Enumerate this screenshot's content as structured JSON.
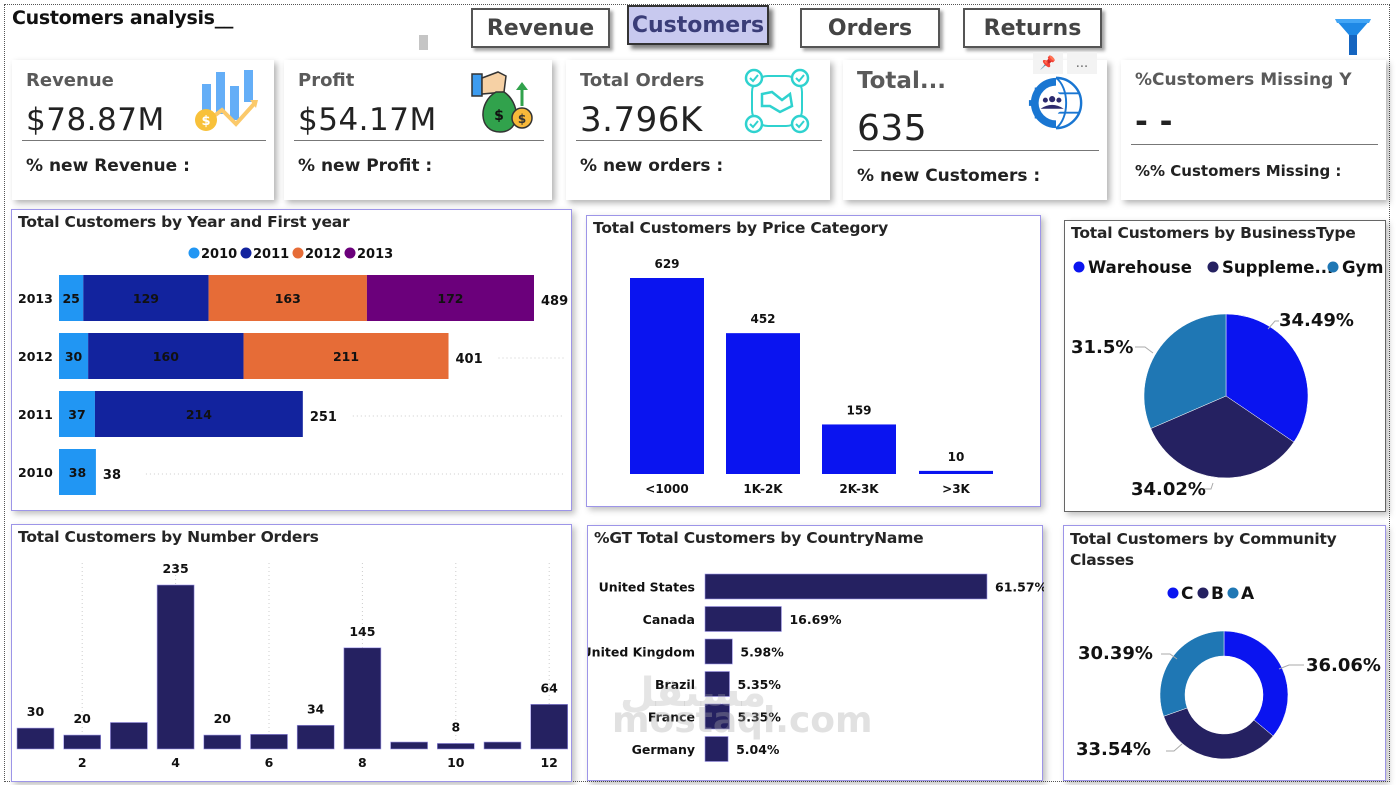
{
  "header": {
    "title": "Customers analysis__",
    "nav": [
      {
        "label": "Revenue",
        "active": false
      },
      {
        "label": "Customers",
        "active": true
      },
      {
        "label": "Orders",
        "active": false
      },
      {
        "label": "Returns",
        "active": false
      }
    ],
    "filter_icon": "filter-funnel-icon"
  },
  "kpis": [
    {
      "title": "Revenue",
      "value": "$78.87M",
      "sub": "% new Revenue :",
      "icon": "revenue-chart-coin-icon"
    },
    {
      "title": "Profit",
      "value": "$54.17M",
      "sub": "% new Profit :",
      "icon": "money-bag-icon"
    },
    {
      "title": "Total Orders",
      "value": "3.796K",
      "sub": "% new orders :",
      "icon": "handshake-check-icon"
    },
    {
      "title": "Total...",
      "value": "635",
      "sub": "% new Customers :",
      "icon": "global-customers-gear-icon"
    },
    {
      "title": "%Customers Missing Y",
      "value": "- -",
      "sub": "%% Customers Missing :",
      "icon": ""
    }
  ],
  "visual_tools": {
    "pin": "pin-icon",
    "more": "..."
  },
  "colors": {
    "c2010": "#2196f3",
    "c2011": "#12239e",
    "c2012": "#e66c37",
    "c2013": "#6b007b",
    "blue": "#0a14f0",
    "navy": "#252161",
    "steel": "#1f77b4",
    "filter": "#1e88e5"
  },
  "chart_data": [
    {
      "id": "year-first-year",
      "type": "bar",
      "orientation": "horizontal",
      "stacked": true,
      "title": "Total Customers by Year and First year",
      "categories": [
        "2013",
        "2012",
        "2011",
        "2010"
      ],
      "legend": [
        "2010",
        "2011",
        "2012",
        "2013"
      ],
      "legend_position": "top-center",
      "series": [
        {
          "name": "2010",
          "values": [
            25,
            30,
            37,
            38
          ]
        },
        {
          "name": "2011",
          "values": [
            129,
            160,
            214,
            null
          ]
        },
        {
          "name": "2012",
          "values": [
            163,
            211,
            null,
            null
          ]
        },
        {
          "name": "2013",
          "values": [
            172,
            null,
            null,
            null
          ]
        }
      ],
      "totals": [
        489,
        401,
        251,
        38
      ]
    },
    {
      "id": "price-category",
      "type": "bar",
      "title": "Total Customers by Price Category",
      "categories": [
        "<1000",
        "1K-2K",
        "2K-3K",
        ">3K"
      ],
      "values": [
        629,
        452,
        159,
        10
      ]
    },
    {
      "id": "business-type",
      "type": "pie",
      "title": "Total Customers by BusinessType",
      "legend": [
        "Warehouse",
        "Suppleme...",
        "Gym"
      ],
      "legend_position": "top-left",
      "labels": [
        "Warehouse",
        "Supplement",
        "Gym"
      ],
      "values": [
        34.49,
        34.02,
        31.5
      ],
      "value_labels": [
        "34.49%",
        "34.02%",
        "31.5%"
      ]
    },
    {
      "id": "number-orders",
      "type": "bar",
      "title": "Total Customers by Number Orders",
      "x": [
        1,
        2,
        3,
        4,
        5,
        6,
        7,
        8,
        9,
        10,
        11,
        12
      ],
      "values": [
        30,
        20,
        38,
        235,
        20,
        21,
        34,
        145,
        10,
        8,
        10,
        64
      ],
      "data_labels": [
        "30",
        "20",
        "",
        "235",
        "20",
        "",
        "34",
        "145",
        "",
        "8",
        "",
        "64"
      ],
      "x_ticks": [
        "2",
        "4",
        "6",
        "8",
        "10",
        "12"
      ],
      "grid": "vertical-dotted"
    },
    {
      "id": "country",
      "type": "bar",
      "orientation": "horizontal",
      "title": "%GT Total Customers by CountryName",
      "categories": [
        "United States",
        "Canada",
        "United Kingdom",
        "Brazil",
        "France",
        "Germany"
      ],
      "values": [
        61.57,
        16.69,
        5.98,
        5.35,
        5.35,
        5.04
      ],
      "value_labels": [
        "61.57%",
        "16.69%",
        "5.98%",
        "5.35%",
        "5.35%",
        "5.04%"
      ]
    },
    {
      "id": "community-classes",
      "type": "pie",
      "donut": true,
      "title": "Total Customers by Community Classes",
      "legend": [
        "C",
        "B",
        "A"
      ],
      "legend_position": "top-center",
      "values": [
        36.06,
        33.54,
        30.39
      ],
      "value_labels": [
        "36.06%",
        "33.54%",
        "30.39%"
      ]
    }
  ],
  "watermark": {
    "latin": "mostaql.com",
    "arabic": "مستقل"
  }
}
